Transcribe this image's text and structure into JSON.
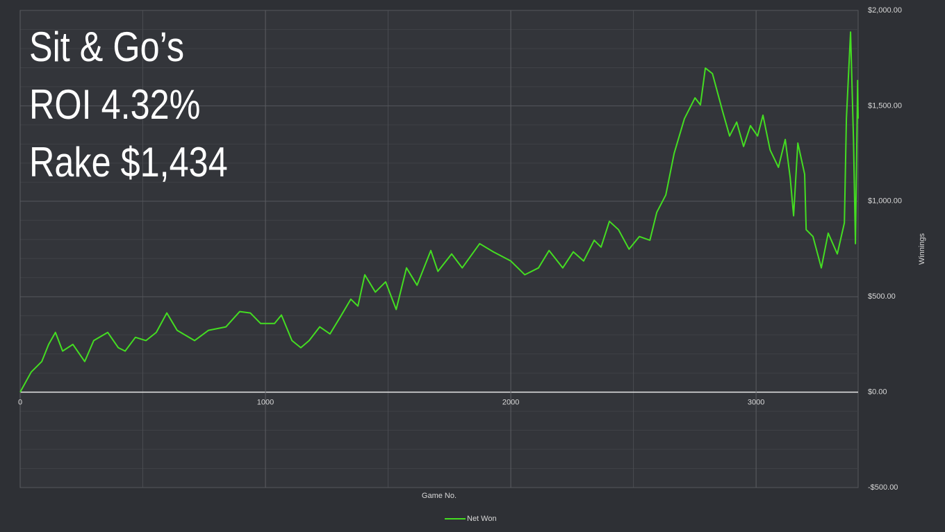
{
  "chart_data": {
    "type": "line",
    "annotations": [
      "Sit & Go’s",
      "ROI 4.32%",
      "Rake $1,434"
    ],
    "xlabel": "Game No.",
    "ylabel": "Winnings",
    "x": [
      0,
      45,
      88,
      116,
      144,
      173,
      215,
      263,
      300,
      357,
      400,
      428,
      470,
      513,
      555,
      598,
      640,
      711,
      768,
      839,
      895,
      938,
      980,
      1037,
      1065,
      1108,
      1144,
      1178,
      1221,
      1263,
      1306,
      1348,
      1377,
      1405,
      1448,
      1490,
      1533,
      1575,
      1618,
      1674,
      1703,
      1759,
      1802,
      1873,
      1929,
      2000,
      2057,
      2113,
      2156,
      2212,
      2255,
      2297,
      2340,
      2368,
      2402,
      2439,
      2482,
      2524,
      2567,
      2595,
      2632,
      2666,
      2708,
      2751,
      2773,
      2793,
      2822,
      2864,
      2892,
      2921,
      2949,
      2977,
      3006,
      3028,
      3057,
      3091,
      3119,
      3139,
      3153,
      3170,
      3198,
      3204,
      3232,
      3266,
      3294,
      3331,
      3360,
      3368,
      3385,
      3397,
      3405,
      3414,
      3416
    ],
    "series": [
      {
        "name": "Net Won",
        "color": "#44dd22",
        "values": [
          0,
          105,
          160,
          250,
          313,
          215,
          250,
          160,
          270,
          313,
          233,
          215,
          287,
          270,
          313,
          415,
          324,
          270,
          324,
          342,
          422,
          415,
          360,
          360,
          404,
          270,
          233,
          270,
          342,
          305,
          396,
          487,
          451,
          615,
          524,
          578,
          433,
          651,
          560,
          742,
          633,
          724,
          651,
          778,
          735,
          687,
          615,
          651,
          742,
          651,
          735,
          687,
          796,
          760,
          895,
          851,
          749,
          815,
          796,
          942,
          1033,
          1251,
          1433,
          1542,
          1505,
          1698,
          1669,
          1469,
          1342,
          1415,
          1287,
          1396,
          1342,
          1451,
          1269,
          1178,
          1324,
          1124,
          924,
          1305,
          1142,
          851,
          815,
          651,
          833,
          724,
          887,
          1433,
          1887,
          1324,
          778,
          1633,
          1433
        ]
      }
    ],
    "xlim": [
      0,
      3416
    ],
    "xticks": [
      0,
      1000,
      2000,
      3000
    ],
    "ylim": [
      -500,
      2000
    ],
    "yticks": [
      {
        "value": -500,
        "label": "-$500.00"
      },
      {
        "value": 0,
        "label": "$0.00"
      },
      {
        "value": 500,
        "label": "$500.00"
      },
      {
        "value": 1000,
        "label": "$1,000.00"
      },
      {
        "value": 1500,
        "label": "$1,500.00"
      },
      {
        "value": 2000,
        "label": "$2,000.00"
      }
    ],
    "grid": true,
    "legend": "bottom"
  }
}
